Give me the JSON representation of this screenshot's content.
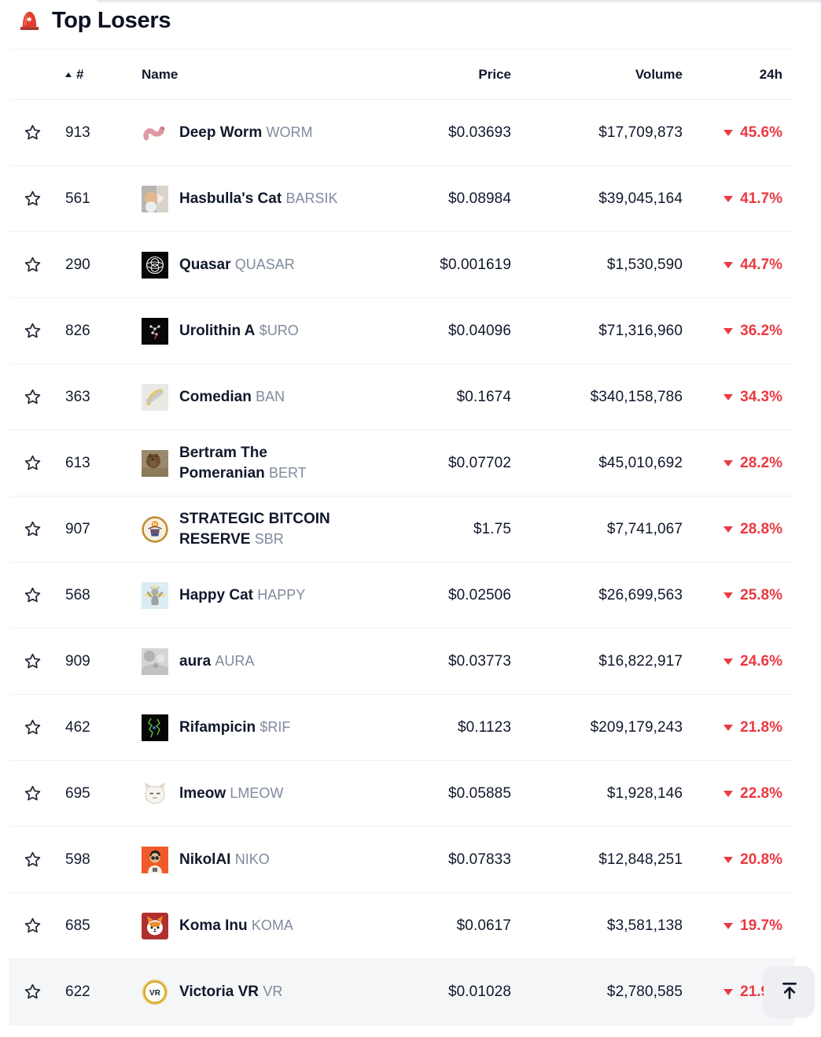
{
  "page": {
    "title": "Top Losers",
    "title_icon": "siren"
  },
  "table": {
    "columns": {
      "rank": "#",
      "name": "Name",
      "price": "Price",
      "volume": "Volume",
      "change": "24h"
    },
    "sort": {
      "column": "#",
      "direction": "ascending"
    },
    "rows": [
      {
        "rank": "913",
        "name": "Deep Worm",
        "symbol": "WORM",
        "price": "$0.03693",
        "volume": "$17,709,873",
        "change": "45.6%",
        "direction": "down",
        "icon": "deep-worm"
      },
      {
        "rank": "561",
        "name": "Hasbulla's Cat",
        "symbol": "BARSIK",
        "price": "$0.08984",
        "volume": "$39,045,164",
        "change": "41.7%",
        "direction": "down",
        "icon": "hasbulla-cat"
      },
      {
        "rank": "290",
        "name": "Quasar",
        "symbol": "QUASAR",
        "price": "$0.001619",
        "volume": "$1,530,590",
        "change": "44.7%",
        "direction": "down",
        "icon": "quasar"
      },
      {
        "rank": "826",
        "name": "Urolithin A",
        "symbol": "$URO",
        "price": "$0.04096",
        "volume": "$71,316,960",
        "change": "36.2%",
        "direction": "down",
        "icon": "urolithin-a"
      },
      {
        "rank": "363",
        "name": "Comedian",
        "symbol": "BAN",
        "price": "$0.1674",
        "volume": "$340,158,786",
        "change": "34.3%",
        "direction": "down",
        "icon": "comedian-banana"
      },
      {
        "rank": "613",
        "name": "Bertram The Pomeranian",
        "symbol": "BERT",
        "price": "$0.07702",
        "volume": "$45,010,692",
        "change": "28.2%",
        "direction": "down",
        "icon": "bertram-pomeranian"
      },
      {
        "rank": "907",
        "name": "STRATEGIC BITCOIN RESERVE",
        "symbol": "SBR",
        "price": "$1.75",
        "volume": "$7,741,067",
        "change": "28.8%",
        "direction": "down",
        "icon": "strategic-bitcoin-reserve"
      },
      {
        "rank": "568",
        "name": "Happy Cat",
        "symbol": "HAPPY",
        "price": "$0.02506",
        "volume": "$26,699,563",
        "change": "25.8%",
        "direction": "down",
        "icon": "happy-cat"
      },
      {
        "rank": "909",
        "name": "aura",
        "symbol": "AURA",
        "price": "$0.03773",
        "volume": "$16,822,917",
        "change": "24.6%",
        "direction": "down",
        "icon": "aura"
      },
      {
        "rank": "462",
        "name": "Rifampicin",
        "symbol": "$RIF",
        "price": "$0.1123",
        "volume": "$209,179,243",
        "change": "21.8%",
        "direction": "down",
        "icon": "rifampicin"
      },
      {
        "rank": "695",
        "name": "lmeow",
        "symbol": "LMEOW",
        "price": "$0.05885",
        "volume": "$1,928,146",
        "change": "22.8%",
        "direction": "down",
        "icon": "lmeow-cat"
      },
      {
        "rank": "598",
        "name": "NikolAI",
        "symbol": "NIKO",
        "price": "$0.07833",
        "volume": "$12,848,251",
        "change": "20.8%",
        "direction": "down",
        "icon": "nikolai"
      },
      {
        "rank": "685",
        "name": "Koma Inu",
        "symbol": "KOMA",
        "price": "$0.0617",
        "volume": "$3,581,138",
        "change": "19.7%",
        "direction": "down",
        "icon": "koma-inu"
      },
      {
        "rank": "622",
        "name": "Victoria VR",
        "symbol": "VR",
        "price": "$0.01028",
        "volume": "$2,780,585",
        "change": "21.9%",
        "direction": "down",
        "icon": "victoria-vr"
      }
    ]
  },
  "scroll_top_button": {
    "icon": "scroll-to-top"
  },
  "colors": {
    "negative": "#ea3943",
    "text": "#0f1729",
    "muted": "#808a9d",
    "divider": "#eff2f5"
  }
}
